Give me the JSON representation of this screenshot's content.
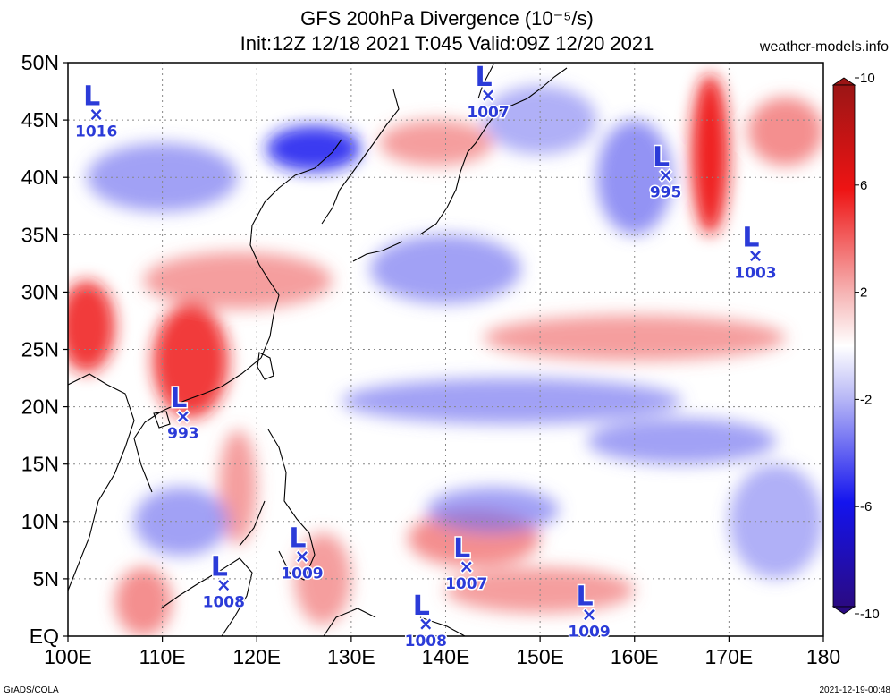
{
  "chart_data": {
    "type": "heatmap",
    "title": "GFS 200hPa Divergence (10⁻⁵/s)",
    "subtitle": "Init:12Z 12/18 2021 T:045 Valid:09Z 12/20 2021",
    "credit": "weather-models.info",
    "footer_left": "GrADS/COLA",
    "footer_right": "2021-12-19-00:48",
    "x_ticks": [
      "100E",
      "110E",
      "120E",
      "130E",
      "140E",
      "150E",
      "160E",
      "170E",
      "180"
    ],
    "y_ticks": [
      "50N",
      "45N",
      "40N",
      "35N",
      "30N",
      "25N",
      "20N",
      "15N",
      "10N",
      "5N",
      "EQ"
    ],
    "xlim": [
      100,
      180
    ],
    "ylim": [
      0,
      50
    ],
    "grid": true,
    "colorbar": {
      "range": [
        -10,
        10
      ],
      "labels": [
        "10",
        "6",
        "2",
        "-2",
        "-6",
        "-10"
      ],
      "colors": {
        "max": "#9b1515",
        "strong_pos": "#ee1414",
        "weak_pos": "#f6b5b5",
        "neutral": "#ffffff",
        "weak_neg": "#b8b8f6",
        "strong_neg": "#1414ee",
        "min": "#2a0a82"
      }
    },
    "lows": [
      {
        "lon": 103,
        "lat": 45.5,
        "value": "1016"
      },
      {
        "lon": 144.5,
        "lat": 47.2,
        "value": "1007"
      },
      {
        "lon": 163.3,
        "lat": 40.2,
        "value": "995"
      },
      {
        "lon": 172.8,
        "lat": 33.2,
        "value": "1003"
      },
      {
        "lon": 112.2,
        "lat": 19.2,
        "value": "993"
      },
      {
        "lon": 116.5,
        "lat": 4.5,
        "value": "1008"
      },
      {
        "lon": 124.8,
        "lat": 7.0,
        "value": "1009"
      },
      {
        "lon": 142.2,
        "lat": 6.1,
        "value": "1007"
      },
      {
        "lon": 137.9,
        "lat": 1.1,
        "value": "1008"
      },
      {
        "lon": 155.2,
        "lat": 1.9,
        "value": "1009"
      }
    ],
    "low_symbol": "L",
    "low_marker": "×",
    "features": [
      {
        "kind": "divergence",
        "strength": 5,
        "lon": 113,
        "lat": 24,
        "rx": 4,
        "ry": 5
      },
      {
        "kind": "divergence",
        "strength": 5,
        "lon": 102,
        "lat": 27,
        "rx": 3,
        "ry": 4
      },
      {
        "kind": "divergence",
        "strength": 3,
        "lon": 118,
        "lat": 31,
        "rx": 10,
        "ry": 2.5
      },
      {
        "kind": "divergence",
        "strength": 4,
        "lon": 143,
        "lat": 8.5,
        "rx": 7,
        "ry": 2.5
      },
      {
        "kind": "divergence",
        "strength": 3,
        "lon": 150,
        "lat": 4,
        "rx": 10,
        "ry": 2
      },
      {
        "kind": "divergence",
        "strength": 6,
        "lon": 168,
        "lat": 42,
        "rx": 2,
        "ry": 7
      },
      {
        "kind": "divergence",
        "strength": 4,
        "lon": 176,
        "lat": 44,
        "rx": 4,
        "ry": 3
      },
      {
        "kind": "divergence",
        "strength": 3,
        "lon": 160,
        "lat": 26,
        "rx": 16,
        "ry": 2
      },
      {
        "kind": "divergence",
        "strength": 3,
        "lon": 139,
        "lat": 43,
        "rx": 6,
        "ry": 2
      },
      {
        "kind": "divergence",
        "strength": 4,
        "lon": 108,
        "lat": 3,
        "rx": 3,
        "ry": 3
      },
      {
        "kind": "divergence",
        "strength": 3,
        "lon": 118,
        "lat": 13,
        "rx": 2,
        "ry": 5
      },
      {
        "kind": "divergence",
        "strength": 3,
        "lon": 127,
        "lat": 5,
        "rx": 3,
        "ry": 4
      },
      {
        "kind": "convergence",
        "strength": 5,
        "lon": 126,
        "lat": 42.5,
        "rx": 5,
        "ry": 2
      },
      {
        "kind": "convergence",
        "strength": 3,
        "lon": 147,
        "lat": 20.5,
        "rx": 18,
        "ry": 2
      },
      {
        "kind": "convergence",
        "strength": 3,
        "lon": 145,
        "lat": 11,
        "rx": 7,
        "ry": 2
      },
      {
        "kind": "convergence",
        "strength": 4,
        "lon": 160,
        "lat": 40,
        "rx": 4,
        "ry": 5
      },
      {
        "kind": "convergence",
        "strength": 3,
        "lon": 110,
        "lat": 40,
        "rx": 8,
        "ry": 3
      },
      {
        "kind": "convergence",
        "strength": 3,
        "lon": 140,
        "lat": 32,
        "rx": 8,
        "ry": 3
      },
      {
        "kind": "convergence",
        "strength": 3,
        "lon": 165,
        "lat": 17,
        "rx": 10,
        "ry": 2
      },
      {
        "kind": "convergence",
        "strength": 3,
        "lon": 112,
        "lat": 10,
        "rx": 5,
        "ry": 3
      },
      {
        "kind": "convergence",
        "strength": 2,
        "lon": 150,
        "lat": 45,
        "rx": 6,
        "ry": 3
      },
      {
        "kind": "convergence",
        "strength": 2,
        "lon": 175,
        "lat": 10,
        "rx": 5,
        "ry": 5
      }
    ]
  }
}
